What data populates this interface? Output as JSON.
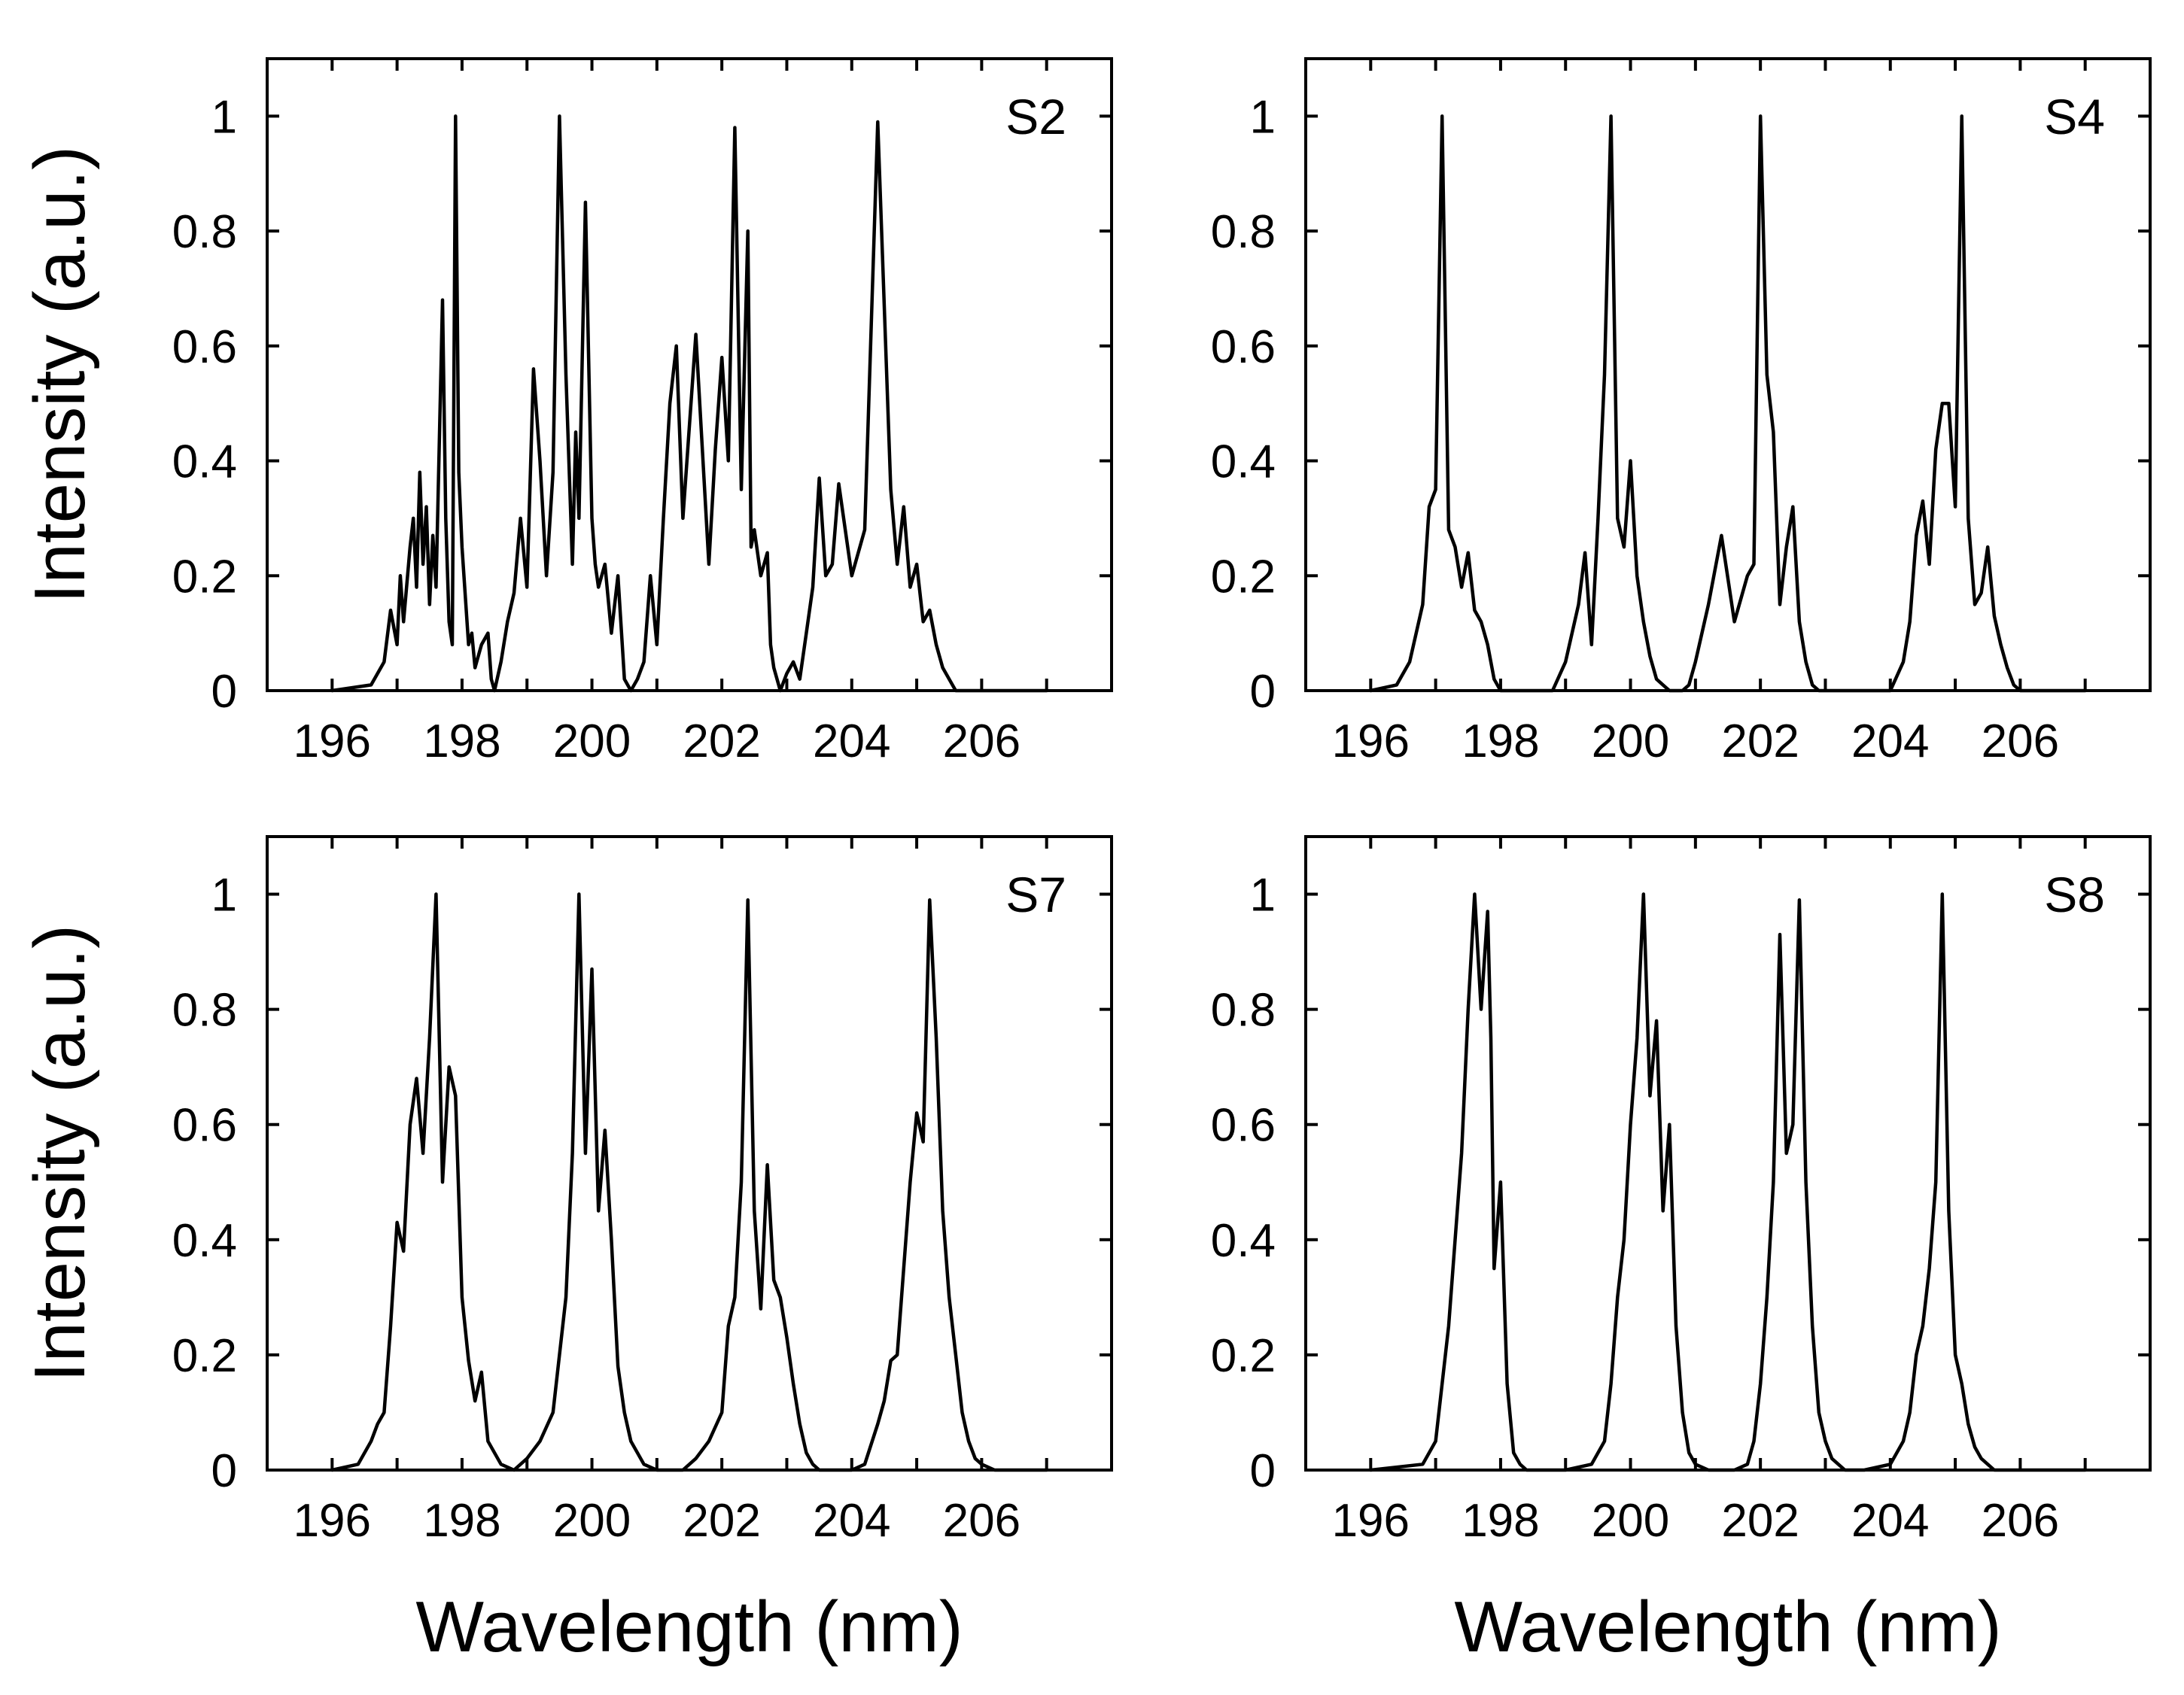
{
  "chart_data": [
    {
      "type": "line",
      "panel": "S2",
      "xlabel": "Wavelength (nm)",
      "ylabel": "Intensity (a.u.)",
      "xlim": [
        195,
        208
      ],
      "ylim": [
        0,
        1.1
      ],
      "xticks": [
        196,
        198,
        200,
        202,
        204,
        206
      ],
      "yticks": [
        0,
        0.2,
        0.4,
        0.6,
        0.8,
        1
      ],
      "ytick_labels": [
        "0",
        "0.2",
        "0.4",
        "0.6",
        "0.8",
        "1"
      ],
      "series": [
        {
          "name": "S2",
          "x": [
            196.0,
            196.6,
            196.8,
            196.9,
            197.0,
            197.05,
            197.1,
            197.2,
            197.25,
            197.3,
            197.35,
            197.4,
            197.45,
            197.5,
            197.55,
            197.6,
            197.7,
            197.75,
            197.8,
            197.85,
            197.9,
            197.95,
            198.0,
            198.1,
            198.15,
            198.2,
            198.3,
            198.4,
            198.45,
            198.5,
            198.6,
            198.7,
            198.8,
            198.9,
            199.0,
            199.1,
            199.2,
            199.3,
            199.4,
            199.5,
            199.6,
            199.7,
            199.75,
            199.8,
            199.9,
            200.0,
            200.05,
            200.1,
            200.2,
            200.3,
            200.4,
            200.5,
            200.6,
            200.7,
            200.8,
            200.9,
            201.0,
            201.1,
            201.2,
            201.3,
            201.4,
            201.6,
            201.8,
            201.9,
            202.0,
            202.1,
            202.2,
            202.3,
            202.4,
            202.45,
            202.5,
            202.6,
            202.7,
            202.75,
            202.8,
            202.9,
            203.0,
            203.1,
            203.2,
            203.3,
            203.4,
            203.5,
            203.6,
            203.7,
            203.8,
            204.0,
            204.2,
            204.4,
            204.6,
            204.7,
            204.8,
            204.9,
            205.0,
            205.1,
            205.2,
            205.3,
            205.4,
            205.5,
            205.6,
            205.7,
            205.8,
            205.9,
            206.0,
            206.1,
            206.2,
            206.3,
            206.4,
            206.6,
            206.8,
            207.0
          ],
          "y": [
            0,
            0.01,
            0.05,
            0.14,
            0.08,
            0.2,
            0.12,
            0.25,
            0.3,
            0.18,
            0.38,
            0.22,
            0.32,
            0.15,
            0.27,
            0.18,
            0.68,
            0.3,
            0.12,
            0.08,
            1.0,
            0.38,
            0.25,
            0.08,
            0.1,
            0.04,
            0.08,
            0.1,
            0.02,
            0.0,
            0.05,
            0.12,
            0.17,
            0.3,
            0.18,
            0.56,
            0.4,
            0.2,
            0.38,
            1.0,
            0.55,
            0.22,
            0.45,
            0.3,
            0.85,
            0.3,
            0.22,
            0.18,
            0.22,
            0.1,
            0.2,
            0.02,
            0.0,
            0.02,
            0.05,
            0.2,
            0.08,
            0.3,
            0.5,
            0.6,
            0.3,
            0.62,
            0.22,
            0.42,
            0.58,
            0.4,
            0.98,
            0.35,
            0.8,
            0.25,
            0.28,
            0.2,
            0.24,
            0.08,
            0.04,
            0.0,
            0.03,
            0.05,
            0.02,
            0.1,
            0.18,
            0.37,
            0.2,
            0.22,
            0.36,
            0.2,
            0.28,
            0.99,
            0.35,
            0.22,
            0.32,
            0.18,
            0.22,
            0.12,
            0.14,
            0.08,
            0.04,
            0.02,
            0.0,
            0.0,
            0.0,
            0.0,
            0.0,
            0.0,
            0.0,
            0.0,
            0.0,
            0.0,
            0.0,
            0.0
          ]
        }
      ]
    },
    {
      "type": "line",
      "panel": "S4",
      "xlabel": "Wavelength (nm)",
      "ylabel": "",
      "xlim": [
        195,
        208
      ],
      "ylim": [
        0,
        1.1
      ],
      "xticks": [
        196,
        198,
        200,
        202,
        204,
        206
      ],
      "yticks": [
        0,
        0.2,
        0.4,
        0.6,
        0.8,
        1
      ],
      "ytick_labels": [
        "0",
        "0.2",
        "0.4",
        "0.6",
        "0.8",
        "1"
      ],
      "series": [
        {
          "name": "S4",
          "x": [
            196.0,
            196.4,
            196.6,
            196.8,
            196.9,
            197.0,
            197.1,
            197.2,
            197.3,
            197.4,
            197.5,
            197.6,
            197.7,
            197.8,
            197.9,
            198.0,
            198.1,
            198.2,
            198.4,
            198.8,
            199.0,
            199.2,
            199.3,
            199.4,
            199.5,
            199.6,
            199.7,
            199.8,
            199.9,
            200.0,
            200.1,
            200.2,
            200.3,
            200.4,
            200.5,
            200.6,
            200.7,
            200.8,
            200.9,
            201.0,
            201.2,
            201.4,
            201.6,
            201.8,
            201.9,
            202.0,
            202.1,
            202.2,
            202.3,
            202.4,
            202.5,
            202.6,
            202.7,
            202.8,
            202.9,
            203.0,
            203.1,
            203.2,
            203.3,
            203.4,
            203.5,
            203.6,
            203.8,
            204.0,
            204.2,
            204.3,
            204.4,
            204.5,
            204.6,
            204.7,
            204.8,
            204.9,
            205.0,
            205.1,
            205.2,
            205.3,
            205.4,
            205.5,
            205.6,
            205.7,
            205.8,
            205.9,
            206.0,
            206.1,
            206.2,
            206.4,
            206.6,
            207.0
          ],
          "y": [
            0,
            0.01,
            0.05,
            0.15,
            0.32,
            0.35,
            1.0,
            0.28,
            0.25,
            0.18,
            0.24,
            0.14,
            0.12,
            0.08,
            0.02,
            0.0,
            0.0,
            0.0,
            0.0,
            0.0,
            0.05,
            0.15,
            0.24,
            0.08,
            0.3,
            0.55,
            1.0,
            0.3,
            0.25,
            0.4,
            0.2,
            0.12,
            0.06,
            0.02,
            0.01,
            0.0,
            0.0,
            0.0,
            0.01,
            0.05,
            0.15,
            0.27,
            0.12,
            0.2,
            0.22,
            1.0,
            0.55,
            0.45,
            0.15,
            0.25,
            0.32,
            0.12,
            0.05,
            0.01,
            0.0,
            0.0,
            0.0,
            0.0,
            0.0,
            0.0,
            0.0,
            0.0,
            0.0,
            0.0,
            0.05,
            0.12,
            0.27,
            0.33,
            0.22,
            0.42,
            0.5,
            0.5,
            0.32,
            1.0,
            0.3,
            0.15,
            0.17,
            0.25,
            0.13,
            0.08,
            0.04,
            0.01,
            0.0,
            0.0,
            0.0,
            0.0,
            0.0,
            0.0
          ]
        }
      ]
    },
    {
      "type": "line",
      "panel": "S7",
      "xlabel": "Wavelength (nm)",
      "ylabel": "Intensity (a.u.)",
      "xlim": [
        195,
        208
      ],
      "ylim": [
        0,
        1.1
      ],
      "xticks": [
        196,
        198,
        200,
        202,
        204,
        206
      ],
      "yticks": [
        0,
        0.2,
        0.4,
        0.6,
        0.8,
        1
      ],
      "ytick_labels": [
        "0",
        "0.2",
        "0.4",
        "0.6",
        "0.8",
        "1"
      ],
      "series": [
        {
          "name": "S7",
          "x": [
            196.0,
            196.4,
            196.6,
            196.7,
            196.8,
            196.9,
            197.0,
            197.1,
            197.2,
            197.3,
            197.4,
            197.5,
            197.6,
            197.7,
            197.8,
            197.9,
            198.0,
            198.1,
            198.2,
            198.3,
            198.4,
            198.6,
            198.8,
            199.0,
            199.2,
            199.4,
            199.5,
            199.6,
            199.7,
            199.8,
            199.9,
            200.0,
            200.1,
            200.2,
            200.3,
            200.4,
            200.5,
            200.6,
            200.8,
            201.0,
            201.2,
            201.4,
            201.6,
            201.8,
            202.0,
            202.1,
            202.2,
            202.3,
            202.4,
            202.5,
            202.6,
            202.7,
            202.8,
            202.9,
            203.0,
            203.1,
            203.2,
            203.3,
            203.4,
            203.5,
            203.6,
            203.8,
            204.0,
            204.2,
            204.4,
            204.5,
            204.6,
            204.7,
            204.8,
            204.9,
            205.0,
            205.1,
            205.2,
            205.3,
            205.4,
            205.5,
            205.6,
            205.7,
            205.8,
            205.9,
            206.0,
            206.2,
            206.4,
            206.6,
            207.0
          ],
          "y": [
            0,
            0.01,
            0.05,
            0.08,
            0.1,
            0.25,
            0.43,
            0.38,
            0.6,
            0.68,
            0.55,
            0.75,
            1.0,
            0.5,
            0.7,
            0.65,
            0.3,
            0.19,
            0.12,
            0.17,
            0.05,
            0.01,
            0.0,
            0.02,
            0.05,
            0.1,
            0.2,
            0.3,
            0.55,
            1.0,
            0.55,
            0.87,
            0.45,
            0.59,
            0.4,
            0.18,
            0.1,
            0.05,
            0.01,
            0.0,
            0.0,
            0.0,
            0.02,
            0.05,
            0.1,
            0.25,
            0.3,
            0.5,
            0.99,
            0.45,
            0.28,
            0.53,
            0.33,
            0.3,
            0.23,
            0.15,
            0.08,
            0.03,
            0.01,
            0.0,
            0.0,
            0.0,
            0.0,
            0.01,
            0.08,
            0.12,
            0.19,
            0.2,
            0.35,
            0.5,
            0.62,
            0.57,
            0.99,
            0.75,
            0.45,
            0.3,
            0.2,
            0.1,
            0.05,
            0.02,
            0.01,
            0.0,
            0.0,
            0.0,
            0.0
          ]
        }
      ]
    },
    {
      "type": "line",
      "panel": "S8",
      "xlabel": "Wavelength (nm)",
      "ylabel": "",
      "xlim": [
        195,
        208
      ],
      "ylim": [
        0,
        1.1
      ],
      "xticks": [
        196,
        198,
        200,
        202,
        204,
        206
      ],
      "yticks": [
        0,
        0.2,
        0.4,
        0.6,
        0.8,
        1
      ],
      "ytick_labels": [
        "0",
        "0.2",
        "0.4",
        "0.6",
        "0.8",
        "1"
      ],
      "series": [
        {
          "name": "S8",
          "x": [
            196.0,
            196.8,
            197.0,
            197.2,
            197.3,
            197.4,
            197.5,
            197.6,
            197.7,
            197.8,
            197.85,
            197.9,
            198.0,
            198.1,
            198.2,
            198.3,
            198.4,
            198.6,
            199.0,
            199.4,
            199.6,
            199.7,
            199.8,
            199.9,
            200.0,
            200.1,
            200.2,
            200.3,
            200.4,
            200.5,
            200.6,
            200.7,
            200.8,
            200.9,
            201.0,
            201.2,
            201.6,
            201.8,
            201.9,
            202.0,
            202.1,
            202.2,
            202.3,
            202.4,
            202.5,
            202.6,
            202.7,
            202.8,
            202.9,
            203.0,
            203.1,
            203.2,
            203.3,
            203.4,
            203.6,
            204.0,
            204.2,
            204.3,
            204.4,
            204.5,
            204.6,
            204.7,
            204.8,
            204.9,
            205.0,
            205.1,
            205.2,
            205.3,
            205.4,
            205.5,
            205.6,
            205.8,
            206.0,
            206.2,
            206.6,
            207.0
          ],
          "y": [
            0,
            0.01,
            0.05,
            0.25,
            0.4,
            0.55,
            0.8,
            1.0,
            0.8,
            0.97,
            0.75,
            0.35,
            0.5,
            0.15,
            0.03,
            0.01,
            0.0,
            0.0,
            0.0,
            0.01,
            0.05,
            0.15,
            0.3,
            0.4,
            0.6,
            0.75,
            1.0,
            0.65,
            0.78,
            0.45,
            0.6,
            0.25,
            0.1,
            0.03,
            0.01,
            0.0,
            0.0,
            0.01,
            0.05,
            0.15,
            0.3,
            0.5,
            0.93,
            0.55,
            0.6,
            0.99,
            0.5,
            0.25,
            0.1,
            0.05,
            0.02,
            0.01,
            0.0,
            0.0,
            0.0,
            0.01,
            0.05,
            0.1,
            0.2,
            0.25,
            0.35,
            0.5,
            1.0,
            0.45,
            0.2,
            0.15,
            0.08,
            0.04,
            0.02,
            0.01,
            0.0,
            0.0,
            0.0,
            0.0,
            0.0,
            0.0
          ]
        }
      ]
    }
  ]
}
